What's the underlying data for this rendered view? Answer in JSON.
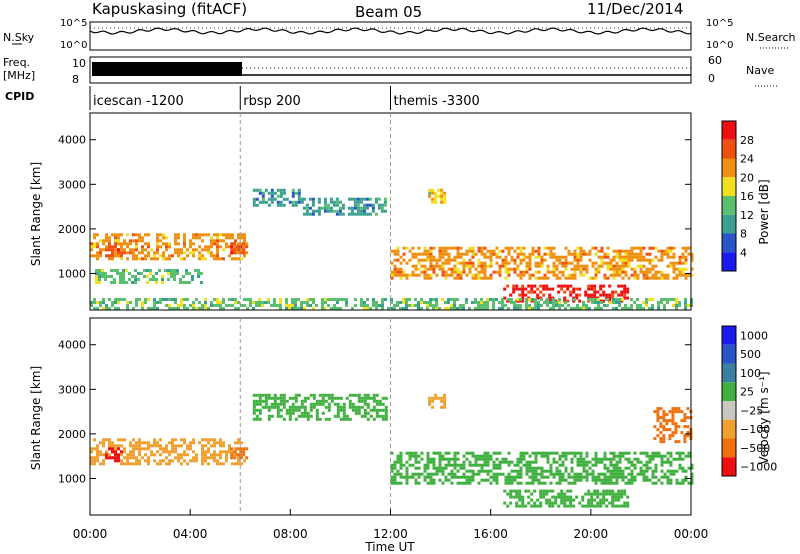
{
  "header": {
    "station": "Kapuskasing (fitACF)",
    "beam": "Beam 05",
    "date": "11/Dec/2014"
  },
  "left_labels": {
    "nsky": "N.Sky",
    "freq": "Freq.",
    "freq_unit": "[MHz]",
    "cpid": "CPID"
  },
  "right_labels": {
    "nsearch": "N.Search",
    "nave": "Nave"
  },
  "noise_axis": {
    "top": "10^5",
    "bottom": "10^0"
  },
  "freq_axis": {
    "top": "10",
    "bottom": "8"
  },
  "nave_axis": {
    "top": "60",
    "bottom": "0"
  },
  "cpid_segments": [
    {
      "name": "icescan -1200",
      "start_hour": 0,
      "end_hour": 6.0
    },
    {
      "name": "rbsp 200",
      "start_hour": 6.0,
      "end_hour": 12.0
    },
    {
      "name": "themis -3300",
      "start_hour": 12.0,
      "end_hour": 24.0
    }
  ],
  "colors": {
    "power": [
      "#1a1aee",
      "#2a55c8",
      "#3aa090",
      "#5ac070",
      "#f0e020",
      "#f09010",
      "#f05010",
      "#ee1010"
    ],
    "velocity": [
      "#1a1aee",
      "#2a55c8",
      "#3a80a0",
      "#40b040",
      "#c8c8c0",
      "#f0a030",
      "#f07010",
      "#ee1010"
    ],
    "ground_scatter": "#c8c8c0"
  },
  "chart_data": [
    {
      "type": "heatmap",
      "title": "",
      "xlabel": "",
      "ylabel": "Slant Range [km]",
      "xlim_hours": [
        0,
        24
      ],
      "ylim_km": [
        180,
        4600
      ],
      "yticks": [
        "1000",
        "2000",
        "3000",
        "4000"
      ],
      "colorbar": {
        "label": "Power [dB]",
        "ticks": [
          "4",
          "8",
          "12",
          "16",
          "20",
          "24",
          "28"
        ],
        "range": [
          0,
          32
        ]
      },
      "echo_regions": [
        {
          "x": [
            0.0,
            6.2
          ],
          "y": [
            1300,
            1900
          ],
          "value": 20
        },
        {
          "x": [
            0.6,
            1.3
          ],
          "y": [
            1400,
            1700
          ],
          "value": 27
        },
        {
          "x": [
            5.6,
            6.3
          ],
          "y": [
            1450,
            1700
          ],
          "value": 26
        },
        {
          "x": [
            0.2,
            4.5
          ],
          "y": [
            800,
            1100
          ],
          "value": 12
        },
        {
          "x": [
            6.5,
            8.5
          ],
          "y": [
            2500,
            2900
          ],
          "value": 10
        },
        {
          "x": [
            8.5,
            11.8
          ],
          "y": [
            2300,
            2700
          ],
          "value": 10
        },
        {
          "x": [
            12.0,
            24.0
          ],
          "y": [
            900,
            1600
          ],
          "value": 22
        },
        {
          "x": [
            16.5,
            21.5
          ],
          "y": [
            350,
            750
          ],
          "value": 30
        },
        {
          "x": [
            0.0,
            24.0
          ],
          "y": [
            200,
            450
          ],
          "value": 14
        },
        {
          "x": [
            13.5,
            14.2
          ],
          "y": [
            2600,
            2900
          ],
          "value": 18
        }
      ]
    },
    {
      "type": "heatmap",
      "title": "",
      "xlabel": "Time UT",
      "ylabel": "Slant Range [km]",
      "xlim_hours": [
        0,
        24
      ],
      "ylim_km": [
        180,
        4600
      ],
      "yticks": [
        "1000",
        "2000",
        "3000",
        "4000"
      ],
      "xticks": [
        "00:00",
        "04:00",
        "08:00",
        "12:00",
        "16:00",
        "20:00",
        "00:00"
      ],
      "colorbar": {
        "label": "Velocity [m s⁻¹]",
        "ticks": [
          "1000",
          "500",
          "100",
          "25",
          "−25",
          "−100",
          "−500",
          "−1000"
        ],
        "range": [
          -1000,
          1000
        ]
      },
      "echo_regions": [
        {
          "x": [
            0.0,
            6.2
          ],
          "y": [
            1300,
            1900
          ],
          "value": -300
        },
        {
          "x": [
            0.6,
            1.3
          ],
          "y": [
            1400,
            1700
          ],
          "value": -800
        },
        {
          "x": [
            5.6,
            6.3
          ],
          "y": [
            1450,
            1700
          ],
          "value": -600
        },
        {
          "x": [
            6.5,
            11.8
          ],
          "y": [
            2300,
            2900
          ],
          "value": 0
        },
        {
          "x": [
            12.0,
            24.0
          ],
          "y": [
            900,
            1600
          ],
          "value": 0
        },
        {
          "x": [
            16.5,
            21.5
          ],
          "y": [
            350,
            750
          ],
          "value": 0
        },
        {
          "x": [
            22.5,
            24.0
          ],
          "y": [
            1800,
            2600
          ],
          "value": -700
        },
        {
          "x": [
            13.5,
            14.2
          ],
          "y": [
            2600,
            2900
          ],
          "value": -400
        }
      ]
    }
  ]
}
